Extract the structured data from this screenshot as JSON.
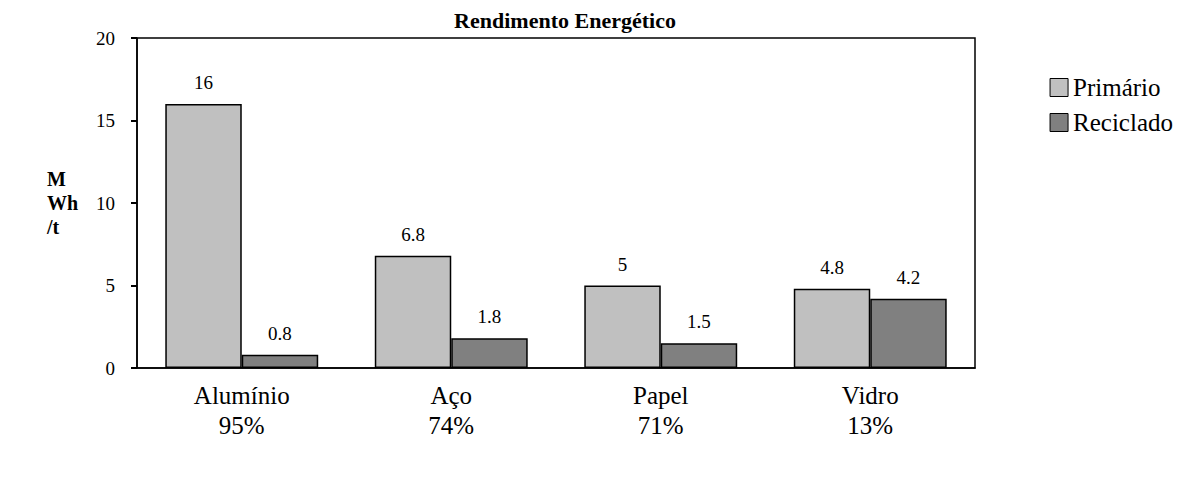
{
  "chart_data": {
    "type": "bar",
    "title": "Rendimento Energético",
    "categories": [
      "Alumínio\n95%",
      "Aço\n74%",
      "Papel\n71%",
      "Vidro\n13%"
    ],
    "series": [
      {
        "name": "Primário",
        "color": "#c0c0c0",
        "values": [
          16,
          6.8,
          5,
          4.8
        ]
      },
      {
        "name": "Reciclado",
        "color": "#808080",
        "values": [
          0.8,
          1.8,
          1.5,
          4.2
        ]
      }
    ],
    "y_label": "M\nWh\n/t",
    "ylim": [
      0,
      20
    ],
    "yticks": [
      0,
      5,
      10,
      15,
      20
    ],
    "grid": false,
    "legend": "right",
    "data_labels": true
  }
}
